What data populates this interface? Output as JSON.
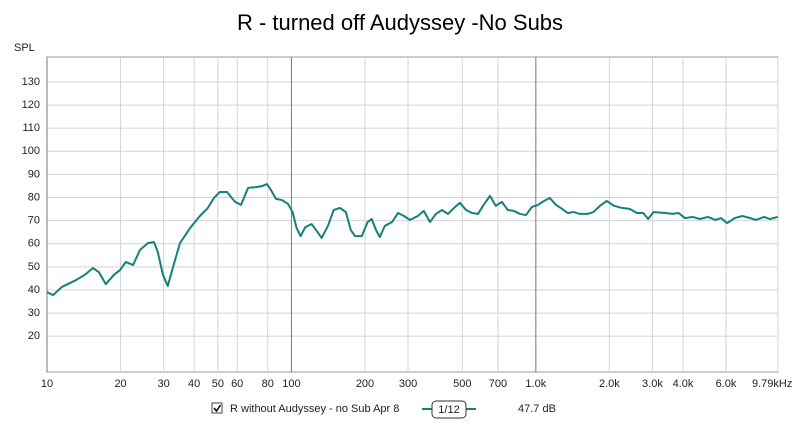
{
  "chart_data": {
    "type": "line",
    "title": "R - turned off Audyssey -No Subs",
    "y_label": "SPL",
    "xscale": "log",
    "grid": true,
    "xlim": [
      10,
      9790
    ],
    "ylim": [
      4.5,
      140.8
    ],
    "xticks": [
      10,
      20,
      30,
      40,
      50,
      60,
      80,
      100,
      200,
      300,
      500,
      700,
      {
        "value": 1000,
        "label": "1.0k"
      },
      {
        "value": 2000,
        "label": "2.0k"
      },
      {
        "value": 3000,
        "label": "3.0k"
      },
      {
        "value": 4000,
        "label": "4.0k"
      },
      {
        "value": 6000,
        "label": "6.0k"
      },
      {
        "value": 9790,
        "label": "9.79kHz"
      }
    ],
    "yticks": [
      20,
      30,
      40,
      50,
      60,
      70,
      80,
      90,
      100,
      110,
      120,
      130
    ],
    "x": [
      10,
      10.6,
      11.5,
      13.0,
      14.3,
      15.4,
      16.3,
      17.4,
      18.8,
      19.9,
      21.0,
      22.5,
      24.0,
      25.9,
      27.4,
      28.4,
      29.8,
      31.2,
      32.7,
      35.0,
      38.5,
      42.2,
      45.5,
      48.2,
      51.0,
      54.5,
      58.8,
      62.2,
      66.5,
      71.7,
      76.0,
      79.4,
      82.5,
      86.5,
      91.5,
      96.9,
      101.1,
      105,
      109,
      114,
      121,
      128,
      133,
      141,
      149,
      158,
      167,
      175,
      182,
      194,
      205,
      213,
      222,
      230,
      241,
      258,
      273,
      289,
      305,
      329,
      348,
      369,
      390,
      413,
      437,
      467,
      489,
      518,
      548,
      580,
      608,
      649,
      686,
      726,
      768,
      813,
      861,
      911,
      964,
      1020,
      1080,
      1140,
      1210,
      1280,
      1350,
      1430,
      1510,
      1630,
      1720,
      1830,
      1950,
      2090,
      2250,
      2420,
      2590,
      2750,
      2880,
      3030,
      3390,
      3630,
      3840,
      4070,
      4380,
      4690,
      5060,
      5430,
      5730,
      6060,
      6510,
      7000,
      7530,
      7950,
      8600,
      9060,
      9790
    ],
    "series": [
      {
        "name": "R without Audyssey - no Sub Apr 8",
        "color": "#14807c",
        "smoothing": "1/12",
        "offset": "47.7 dB",
        "values": [
          39,
          37.8,
          41.3,
          44,
          46.6,
          49.5,
          47.7,
          42.5,
          46.6,
          48.6,
          52.1,
          50.8,
          57.3,
          60.3,
          60.7,
          56.4,
          46.6,
          41.7,
          49.5,
          60.3,
          66.8,
          72,
          75.5,
          79.8,
          82.4,
          82.4,
          78.1,
          76.8,
          84.2,
          84.5,
          85,
          85.8,
          83.2,
          79.4,
          78.9,
          77.2,
          73.7,
          66.8,
          63.3,
          67.2,
          68.5,
          65,
          62.5,
          67.7,
          74.6,
          75.5,
          73.7,
          65.9,
          63.3,
          63.3,
          69.4,
          70.7,
          65.9,
          62.9,
          67.7,
          69.4,
          73.3,
          72,
          70.3,
          72,
          74.2,
          69.4,
          72.9,
          74.6,
          72.9,
          75.9,
          77.7,
          74.6,
          73.3,
          72.9,
          76.4,
          80.7,
          76.4,
          78.1,
          74.6,
          74.2,
          72.9,
          72.4,
          75.9,
          76.8,
          78.5,
          79.8,
          76.8,
          75.1,
          73.3,
          73.7,
          72.9,
          72.9,
          73.7,
          76.4,
          78.5,
          76.4,
          75.5,
          75.1,
          73.3,
          73.3,
          70.7,
          73.7,
          73.3,
          72.9,
          73.3,
          71.1,
          71.6,
          70.7,
          71.6,
          70.3,
          71.1,
          68.9,
          71.1,
          72,
          71.1,
          70.3,
          71.6,
          70.7,
          71.6
        ]
      }
    ]
  }
}
